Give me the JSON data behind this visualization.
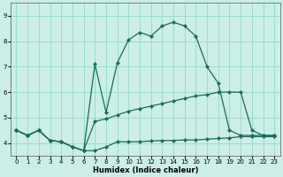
{
  "xlabel": "Humidex (Indice chaleur)",
  "bg_color": "#cceee8",
  "grid_color": "#99ddcc",
  "line_color": "#1a6b5a",
  "xlim": [
    -0.5,
    23.5
  ],
  "ylim": [
    3.5,
    9.5
  ],
  "yticks": [
    4,
    5,
    6,
    7,
    8,
    9
  ],
  "xticks": [
    0,
    1,
    2,
    3,
    4,
    5,
    6,
    7,
    8,
    9,
    10,
    11,
    12,
    13,
    14,
    15,
    16,
    17,
    18,
    19,
    20,
    21,
    22,
    23
  ],
  "series1_x": [
    0,
    1,
    2,
    3,
    4,
    5,
    6,
    7,
    8,
    9,
    10,
    11,
    12,
    13,
    14,
    15,
    16,
    17,
    18,
    19,
    20,
    21,
    22,
    23
  ],
  "series1_y": [
    4.5,
    4.3,
    4.5,
    4.1,
    4.05,
    3.85,
    3.7,
    3.7,
    3.85,
    4.05,
    4.05,
    4.05,
    4.08,
    4.1,
    4.1,
    4.12,
    4.12,
    4.15,
    4.18,
    4.2,
    4.25,
    4.25,
    4.25,
    4.25
  ],
  "series2_x": [
    0,
    1,
    2,
    3,
    4,
    5,
    6,
    7,
    8,
    9,
    10,
    11,
    12,
    13,
    14,
    15,
    16,
    17,
    18,
    19,
    20,
    21,
    22,
    23
  ],
  "series2_y": [
    4.5,
    4.3,
    4.5,
    4.1,
    4.05,
    3.85,
    3.7,
    4.85,
    4.95,
    5.1,
    5.25,
    5.35,
    5.45,
    5.55,
    5.65,
    5.75,
    5.85,
    5.9,
    6.0,
    6.0,
    6.0,
    4.5,
    4.3,
    4.3
  ],
  "series3_x": [
    0,
    1,
    2,
    3,
    4,
    5,
    6,
    7,
    8,
    9,
    10,
    11,
    12,
    13,
    14,
    15,
    16,
    17,
    18,
    19,
    20,
    21,
    22,
    23
  ],
  "series3_y": [
    4.5,
    4.3,
    4.5,
    4.1,
    4.05,
    3.85,
    3.7,
    7.1,
    5.2,
    7.15,
    8.05,
    8.35,
    8.2,
    8.6,
    8.75,
    8.6,
    8.2,
    7.0,
    6.35,
    4.5,
    4.3,
    4.3,
    4.3,
    4.3
  ]
}
